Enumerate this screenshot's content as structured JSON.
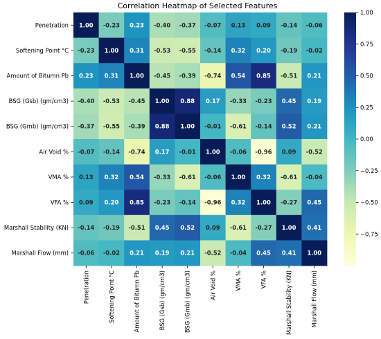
{
  "chart_data": {
    "type": "heatmap",
    "title": "Correlation Heatmap of Selected Features",
    "rows": [
      "Penetration",
      "Softening Point °C",
      "Amount of Bitumn Pb",
      "BSG (Gsb) (gm/cm3)",
      "BSG (Gmb) (gm/cm3)",
      "Air Void %",
      "VMA %",
      "VFA %",
      "Marshall Stability (KN)",
      "Marshall Flow (mm)"
    ],
    "columns": [
      "Penetration",
      "Softening Point °C",
      "Amount of Bitumn Pb",
      "BSG (Gsb) (gm/cm3)",
      "BSG (Gmb) (gm/cm3)",
      "Air Void %",
      "VMA %",
      "VFA %",
      "Marshall Stability (KN)",
      "Marshall Flow (mm)"
    ],
    "values": [
      [
        1.0,
        -0.23,
        0.23,
        -0.4,
        -0.37,
        -0.07,
        0.13,
        0.09,
        -0.14,
        -0.06
      ],
      [
        -0.23,
        1.0,
        0.31,
        -0.53,
        -0.55,
        -0.14,
        0.32,
        0.2,
        -0.19,
        -0.02
      ],
      [
        0.23,
        0.31,
        1.0,
        -0.45,
        -0.39,
        -0.74,
        0.54,
        0.85,
        -0.51,
        0.21
      ],
      [
        -0.4,
        -0.53,
        -0.45,
        1.0,
        0.88,
        0.17,
        -0.33,
        -0.23,
        0.45,
        0.19
      ],
      [
        -0.37,
        -0.55,
        -0.39,
        0.88,
        1.0,
        -0.01,
        -0.61,
        -0.14,
        0.52,
        0.21
      ],
      [
        -0.07,
        -0.14,
        -0.74,
        0.17,
        -0.01,
        1.0,
        -0.06,
        -0.96,
        0.09,
        -0.52
      ],
      [
        0.13,
        0.32,
        0.54,
        -0.33,
        -0.61,
        -0.06,
        1.0,
        0.32,
        -0.61,
        -0.04
      ],
      [
        0.09,
        0.2,
        0.85,
        -0.23,
        -0.14,
        -0.96,
        0.32,
        1.0,
        -0.27,
        0.45
      ],
      [
        -0.14,
        -0.19,
        -0.51,
        0.45,
        0.52,
        0.09,
        -0.61,
        -0.27,
        1.0,
        0.41
      ],
      [
        -0.06,
        -0.02,
        0.21,
        0.19,
        0.21,
        -0.52,
        -0.04,
        0.45,
        0.41,
        1.0
      ]
    ],
    "value_range": [
      -1,
      1
    ],
    "colormap": "YlGnBu",
    "colorbar_ticks": [
      "1.00",
      "0.75",
      "0.50",
      "0.25",
      "0.00",
      "−0.25",
      "−0.50",
      "−0.75"
    ],
    "colorbar_tick_values": [
      1.0,
      0.75,
      0.5,
      0.25,
      0.0,
      -0.25,
      -0.5,
      -0.75
    ],
    "annotation_format": "2 decimals",
    "legend": "colorbar right"
  }
}
